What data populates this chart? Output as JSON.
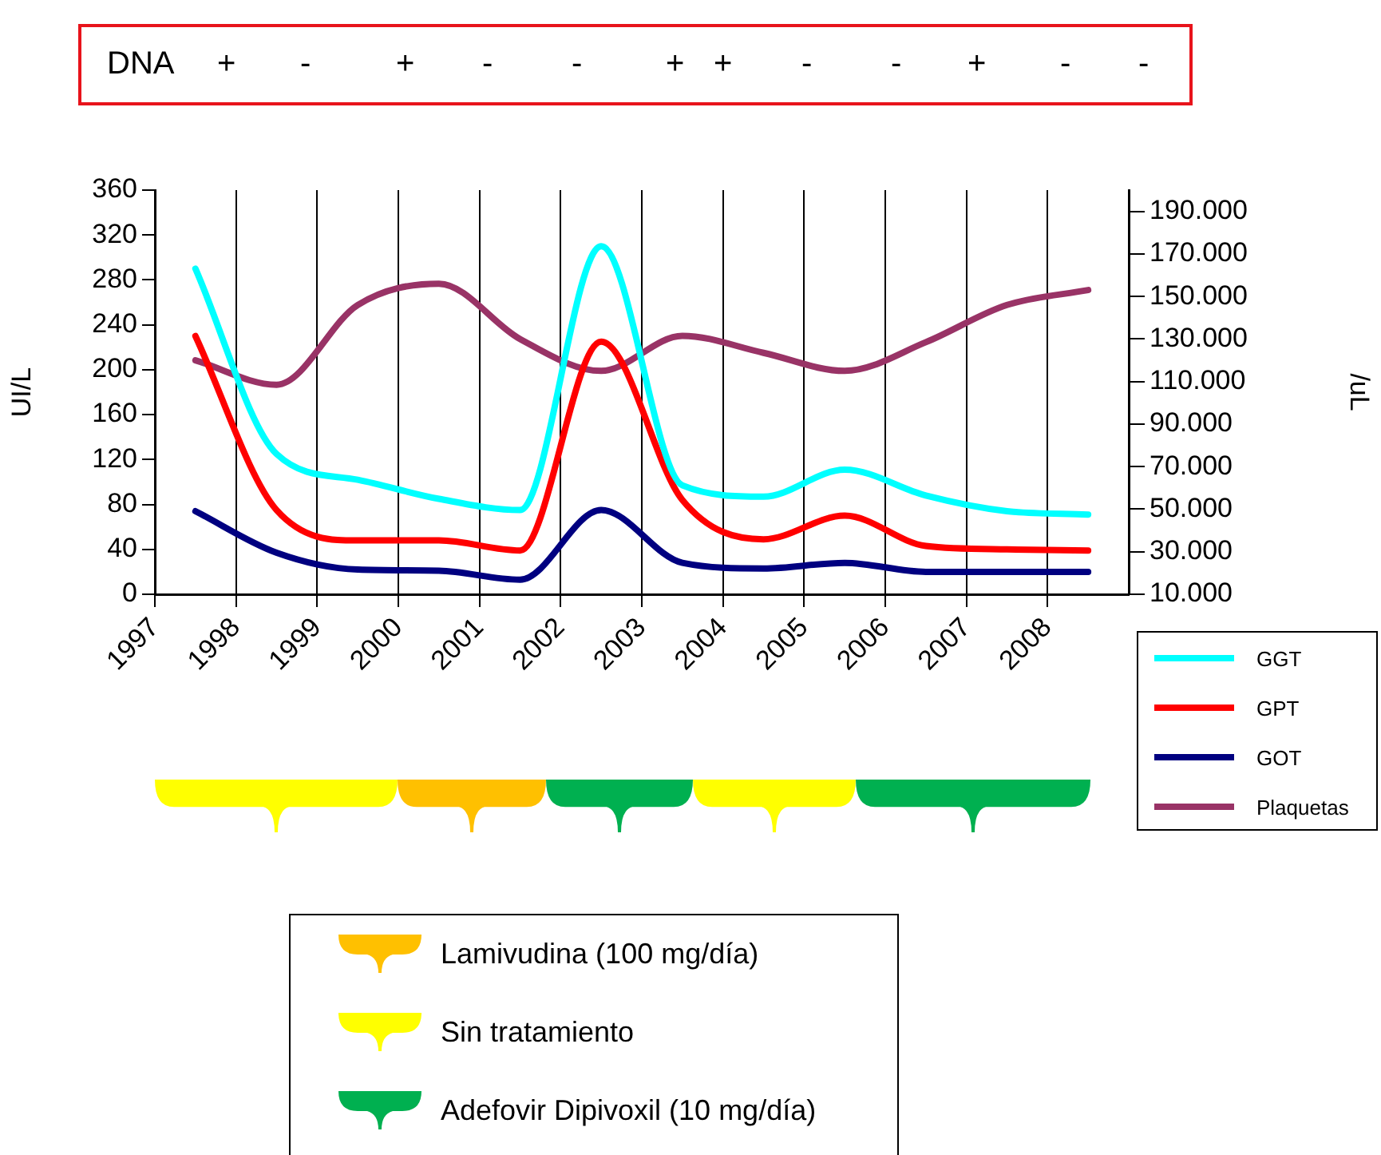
{
  "chart_data": {
    "type": "line",
    "ylabel": "UI/L",
    "y2label": "/uL",
    "x": [
      1997.5,
      1998.5,
      1999.5,
      2000.5,
      2001.5,
      2002.5,
      2003.5,
      2004.5,
      2005.5,
      2006.5,
      2007.5,
      2008.5
    ],
    "series": [
      {
        "name": "GGT",
        "color": "#00ffff",
        "values": [
          290,
          125,
          102,
          85,
          75,
          310,
          97,
          87,
          111,
          88,
          74,
          71
        ]
      },
      {
        "name": "GPT",
        "color": "#ff0000",
        "values": [
          230,
          75,
          48,
          48,
          39,
          225,
          84,
          49,
          70,
          43,
          40,
          39
        ]
      },
      {
        "name": "GOT",
        "color": "#000080",
        "values": [
          74,
          37,
          22,
          21,
          13,
          75,
          28,
          23,
          28,
          20,
          20,
          20
        ]
      },
      {
        "name": "Plaquetas",
        "color": "#993366",
        "axis": "y2",
        "values": [
          120000,
          108500,
          146000,
          156000,
          130000,
          115000,
          131500,
          123500,
          115000,
          128500,
          146000,
          153000
        ]
      }
    ],
    "xlim": [
      1997,
      2009
    ],
    "xticks": [
      1997,
      1998,
      1999,
      2000,
      2001,
      2002,
      2003,
      2004,
      2005,
      2006,
      2007,
      2008
    ],
    "ylim": [
      0,
      360
    ],
    "yticks": [
      0,
      40,
      80,
      120,
      160,
      200,
      240,
      280,
      320,
      360
    ],
    "y2lim": [
      10000,
      200000
    ],
    "y2ticks": [
      {
        "value": 10000,
        "label": "10.000"
      },
      {
        "value": 30000,
        "label": "30.000"
      },
      {
        "value": 50000,
        "label": "50.000"
      },
      {
        "value": 70000,
        "label": "70.000"
      },
      {
        "value": 90000,
        "label": "90.000"
      },
      {
        "value": 110000,
        "label": "110.000"
      },
      {
        "value": 130000,
        "label": "130.000"
      },
      {
        "value": 150000,
        "label": "150.000"
      },
      {
        "value": 170000,
        "label": "170.000"
      },
      {
        "value": 190000,
        "label": "190.000"
      }
    ],
    "grid": "x",
    "legend": "right",
    "marker": "none",
    "line_style": "solid",
    "annotations": [
      "DNA",
      "+",
      "-",
      "+",
      "-",
      "-",
      "+",
      "+",
      "-",
      "-",
      "+",
      "-",
      "-",
      "Lamivudina (100 mg/día)",
      "Sin tratamiento",
      "Adefovir Dipivoxil (10 mg/día)"
    ]
  }
}
